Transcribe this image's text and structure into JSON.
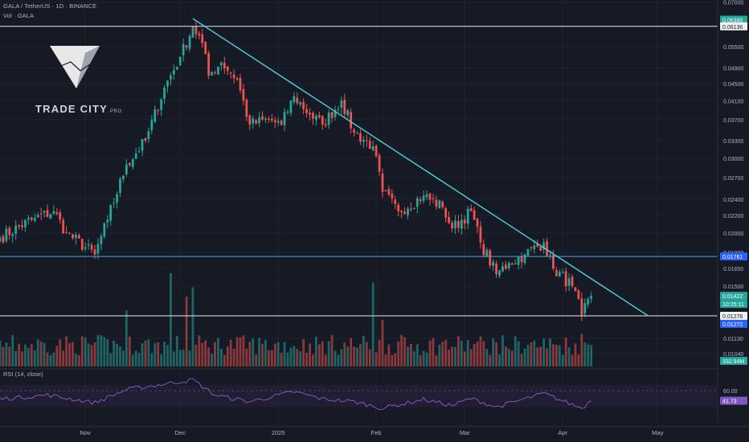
{
  "header": {
    "title": "GALA / TetherUS · 1D · BINANCE",
    "volume_label": "Vol · GALA"
  },
  "logo": {
    "name": "TRADE CITY",
    "suffix": "PRO"
  },
  "colors": {
    "background": "#161a25",
    "up": "#26a69a",
    "down": "#ef5350",
    "trendline": "#4dd0e1",
    "hline_white": "#e8e8e8",
    "hline_blue": "#4aa3d8",
    "rsi_line": "#7e57c2",
    "rsi_band": "#2a2240"
  },
  "chart_data": {
    "type": "candlestick",
    "symbol": "GALA/USDT",
    "interval": "1D",
    "exchange": "BINANCE",
    "x_ticks": [
      "Nov",
      "Dec",
      "2025",
      "Feb",
      "Mar",
      "Apr",
      "May"
    ],
    "y_ticks": [
      "0.07000",
      "0.05500",
      "0.04900",
      "0.04500",
      "0.04100",
      "0.03700",
      "0.03300",
      "0.03000",
      "0.02700",
      "0.02400",
      "0.02200",
      "0.02000",
      "0.01800",
      "0.01650",
      "0.01500",
      "0.01130",
      "0.01040"
    ],
    "price_tags": [
      {
        "value": "0.06360",
        "kind": "teal"
      },
      {
        "value": "0.06136",
        "kind": "white"
      },
      {
        "value": "0.01761",
        "kind": "blue"
      },
      {
        "value": "0.01422",
        "kind": "last"
      },
      {
        "value": "10:25:11",
        "kind": "countdown"
      },
      {
        "value": "0.01276",
        "kind": "white"
      },
      {
        "value": "0.01272",
        "kind": "blue"
      },
      {
        "value": "332.94M",
        "kind": "volume"
      }
    ],
    "horizontal_levels": [
      0.06136,
      0.01761,
      0.01276
    ],
    "trendline": {
      "from": {
        "date": "2024-12-05",
        "price": 0.064
      },
      "to": {
        "date": "2025-04-28",
        "price": 0.01276
      }
    },
    "last_price": 0.01422,
    "waypoints": [
      {
        "date": "2024-10-05",
        "price": 0.0195
      },
      {
        "date": "2024-10-15",
        "price": 0.0215
      },
      {
        "date": "2024-10-22",
        "price": 0.0225
      },
      {
        "date": "2024-10-26",
        "price": 0.02
      },
      {
        "date": "2024-11-04",
        "price": 0.0178
      },
      {
        "date": "2024-11-08",
        "price": 0.0215
      },
      {
        "date": "2024-11-14",
        "price": 0.029
      },
      {
        "date": "2024-11-20",
        "price": 0.033
      },
      {
        "date": "2024-11-26",
        "price": 0.044
      },
      {
        "date": "2024-12-01",
        "price": 0.052
      },
      {
        "date": "2024-12-05",
        "price": 0.0613
      },
      {
        "date": "2024-12-08",
        "price": 0.056
      },
      {
        "date": "2024-12-10",
        "price": 0.047
      },
      {
        "date": "2024-12-14",
        "price": 0.0505
      },
      {
        "date": "2024-12-19",
        "price": 0.046
      },
      {
        "date": "2024-12-23",
        "price": 0.036
      },
      {
        "date": "2024-12-29",
        "price": 0.037
      },
      {
        "date": "2025-01-02",
        "price": 0.036
      },
      {
        "date": "2025-01-06",
        "price": 0.042
      },
      {
        "date": "2025-01-11",
        "price": 0.038
      },
      {
        "date": "2025-01-15",
        "price": 0.036
      },
      {
        "date": "2025-01-21",
        "price": 0.041
      },
      {
        "date": "2025-01-25",
        "price": 0.0345
      },
      {
        "date": "2025-01-31",
        "price": 0.032
      },
      {
        "date": "2025-02-03",
        "price": 0.025
      },
      {
        "date": "2025-02-08",
        "price": 0.0225
      },
      {
        "date": "2025-02-16",
        "price": 0.0245
      },
      {
        "date": "2025-02-22",
        "price": 0.023
      },
      {
        "date": "2025-02-25",
        "price": 0.0205
      },
      {
        "date": "2025-03-03",
        "price": 0.0225
      },
      {
        "date": "2025-03-06",
        "price": 0.019
      },
      {
        "date": "2025-03-11",
        "price": 0.016
      },
      {
        "date": "2025-03-15",
        "price": 0.017
      },
      {
        "date": "2025-03-20",
        "price": 0.0178
      },
      {
        "date": "2025-03-26",
        "price": 0.019
      },
      {
        "date": "2025-03-29",
        "price": 0.0165
      },
      {
        "date": "2025-04-04",
        "price": 0.015
      },
      {
        "date": "2025-04-07",
        "price": 0.0128
      },
      {
        "date": "2025-04-10",
        "price": 0.01422
      }
    ],
    "volume_spikes": [
      {
        "date": "2024-11-14",
        "level": 0.6
      },
      {
        "date": "2024-11-28",
        "level": 1.0
      },
      {
        "date": "2024-12-03",
        "level": 0.75
      },
      {
        "date": "2024-12-05",
        "level": 0.85
      },
      {
        "date": "2025-01-31",
        "level": 0.9
      },
      {
        "date": "2025-02-03",
        "level": 0.5
      },
      {
        "date": "2025-04-07",
        "level": 0.35
      }
    ],
    "rsi": {
      "label": "RSI (14, close)",
      "levels": [
        "60.00"
      ],
      "band": [
        30,
        70
      ],
      "value": "41.73",
      "waypoints": [
        {
          "date": "2024-10-05",
          "v": 45
        },
        {
          "date": "2024-10-20",
          "v": 52
        },
        {
          "date": "2024-11-04",
          "v": 38
        },
        {
          "date": "2024-11-14",
          "v": 62
        },
        {
          "date": "2024-11-28",
          "v": 74
        },
        {
          "date": "2024-12-05",
          "v": 80
        },
        {
          "date": "2024-12-12",
          "v": 52
        },
        {
          "date": "2024-12-23",
          "v": 40
        },
        {
          "date": "2025-01-06",
          "v": 58
        },
        {
          "date": "2025-01-15",
          "v": 45
        },
        {
          "date": "2025-01-25",
          "v": 40
        },
        {
          "date": "2025-02-03",
          "v": 28
        },
        {
          "date": "2025-02-16",
          "v": 44
        },
        {
          "date": "2025-02-25",
          "v": 33
        },
        {
          "date": "2025-03-03",
          "v": 46
        },
        {
          "date": "2025-03-11",
          "v": 30
        },
        {
          "date": "2025-03-26",
          "v": 55
        },
        {
          "date": "2025-04-07",
          "v": 28
        },
        {
          "date": "2025-04-10",
          "v": 41.73
        }
      ]
    }
  }
}
